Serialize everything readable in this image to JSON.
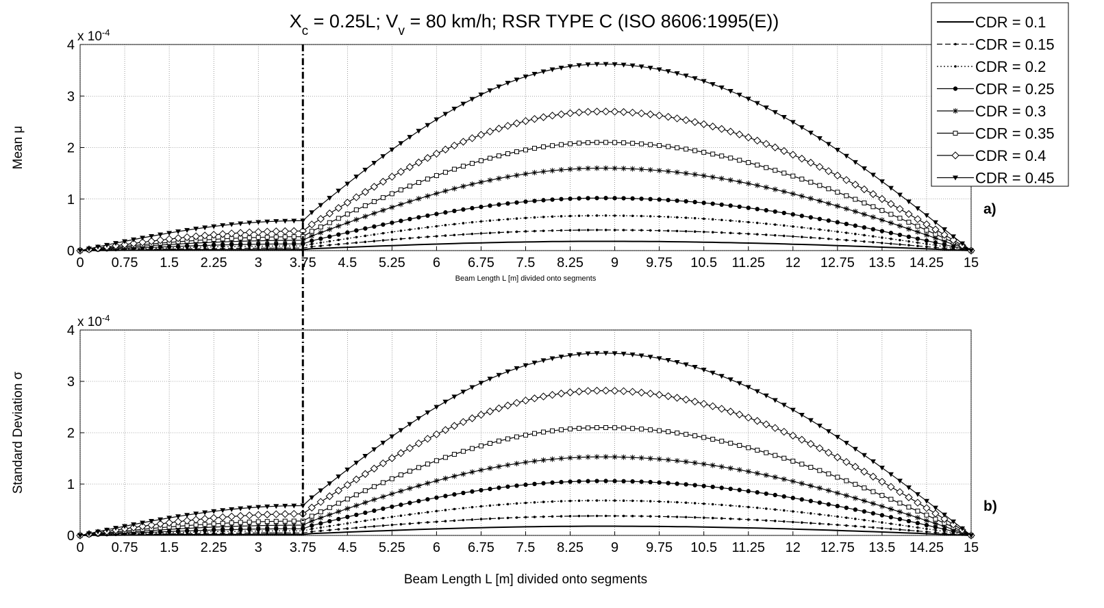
{
  "chart_data": {
    "type": "line",
    "title": {
      "parts": [
        {
          "t": "X",
          "sub": false
        },
        {
          "t": "c",
          "sub": true
        },
        {
          "t": " = 0.25L; V",
          "sub": false
        },
        {
          "t": "v",
          "sub": true
        },
        {
          "t": " = 80 km/h; RSR TYPE C (ISO 8606:1995(E))",
          "sub": false
        }
      ]
    },
    "legend_position": "top-right",
    "grid": true,
    "vertical_marker_x": 3.75,
    "x_ticks": [
      "0",
      "0.75",
      "1.5",
      "2.25",
      "3",
      "3.75",
      "4.5",
      "5.25",
      "6",
      "6.75",
      "7.5",
      "8.25",
      "9",
      "9.75",
      "10.5",
      "11.25",
      "12",
      "12.75",
      "13.5",
      "14.25",
      "15"
    ],
    "xlim": [
      0,
      15
    ],
    "panels": [
      {
        "id": "a",
        "tag": "a)",
        "ylabel": "Mean μ",
        "xlabel": "Beam Length L [m] divided onto segments",
        "y_ticks": [
          "0",
          "1",
          "2",
          "3",
          "4"
        ],
        "ylim": [
          0,
          4
        ],
        "exponent_label": {
          "base": "x 10",
          "exp": "-4"
        },
        "series": [
          {
            "name": "CDR = 0.1",
            "marker": "none",
            "dash": "solid",
            "left_x": [
              0,
              3.75
            ],
            "left_y": [
              0,
              0.02
            ],
            "right_peak_x": 8.8,
            "right_peak_y": 0.18,
            "right_start_y": 0.03
          },
          {
            "name": "CDR = 0.15",
            "marker": "smalldot",
            "dash": "dash",
            "left_x": [
              0,
              3.75
            ],
            "left_y": [
              0,
              0.05
            ],
            "right_peak_x": 8.8,
            "right_peak_y": 0.4,
            "right_start_y": 0.06
          },
          {
            "name": "CDR = 0.2",
            "marker": "smalldot",
            "dash": "dot",
            "left_x": [
              0,
              3.75
            ],
            "left_y": [
              0,
              0.09
            ],
            "right_peak_x": 8.8,
            "right_peak_y": 0.68,
            "right_start_y": 0.1
          },
          {
            "name": "CDR = 0.25",
            "marker": "dot",
            "dash": "solid",
            "left_x": [
              0,
              3.75
            ],
            "left_y": [
              0,
              0.13
            ],
            "right_peak_x": 8.8,
            "right_peak_y": 1.02,
            "right_start_y": 0.15
          },
          {
            "name": "CDR = 0.3",
            "marker": "star",
            "dash": "solid",
            "left_x": [
              0,
              3.75
            ],
            "left_y": [
              0,
              0.2
            ],
            "right_peak_x": 8.8,
            "right_peak_y": 1.6,
            "right_start_y": 0.22
          },
          {
            "name": "CDR = 0.35",
            "marker": "square",
            "dash": "solid",
            "left_x": [
              0,
              3.75
            ],
            "left_y": [
              0,
              0.27
            ],
            "right_peak_x": 8.8,
            "right_peak_y": 2.1,
            "right_start_y": 0.29
          },
          {
            "name": "CDR = 0.4",
            "marker": "diamond",
            "dash": "solid",
            "left_x": [
              0,
              3.75
            ],
            "left_y": [
              0,
              0.38
            ],
            "right_peak_x": 8.8,
            "right_peak_y": 2.7,
            "right_start_y": 0.4
          },
          {
            "name": "CDR = 0.45",
            "marker": "triangle",
            "dash": "solid",
            "left_x": [
              0,
              3.75
            ],
            "left_y": [
              0,
              0.58
            ],
            "right_peak_x": 8.8,
            "right_peak_y": 3.62,
            "right_start_y": 0.6
          }
        ]
      },
      {
        "id": "b",
        "tag": "b)",
        "ylabel": "Standard Deviation σ",
        "xlabel": "Beam Length L [m] divided onto segments",
        "y_ticks": [
          "0",
          "1",
          "2",
          "3",
          "4"
        ],
        "ylim": [
          0,
          4
        ],
        "exponent_label": {
          "base": "x 10",
          "exp": "-4"
        },
        "series": [
          {
            "name": "CDR = 0.1",
            "marker": "none",
            "dash": "solid",
            "left_x": [
              0,
              3.75
            ],
            "left_y": [
              0,
              0.02
            ],
            "right_peak_x": 8.8,
            "right_peak_y": 0.18,
            "right_start_y": 0.03
          },
          {
            "name": "CDR = 0.15",
            "marker": "smalldot",
            "dash": "dash",
            "left_x": [
              0,
              3.75
            ],
            "left_y": [
              0,
              0.05
            ],
            "right_peak_x": 8.8,
            "right_peak_y": 0.38,
            "right_start_y": 0.06
          },
          {
            "name": "CDR = 0.2",
            "marker": "smalldot",
            "dash": "dot",
            "left_x": [
              0,
              3.75
            ],
            "left_y": [
              0,
              0.09
            ],
            "right_peak_x": 8.8,
            "right_peak_y": 0.68,
            "right_start_y": 0.1
          },
          {
            "name": "CDR = 0.25",
            "marker": "dot",
            "dash": "solid",
            "left_x": [
              0,
              3.75
            ],
            "left_y": [
              0,
              0.13
            ],
            "right_peak_x": 8.8,
            "right_peak_y": 1.06,
            "right_start_y": 0.15
          },
          {
            "name": "CDR = 0.3",
            "marker": "star",
            "dash": "solid",
            "left_x": [
              0,
              3.75
            ],
            "left_y": [
              0,
              0.2
            ],
            "right_peak_x": 8.8,
            "right_peak_y": 1.53,
            "right_start_y": 0.22
          },
          {
            "name": "CDR = 0.35",
            "marker": "square",
            "dash": "solid",
            "left_x": [
              0,
              3.75
            ],
            "left_y": [
              0,
              0.28
            ],
            "right_peak_x": 8.8,
            "right_peak_y": 2.1,
            "right_start_y": 0.29
          },
          {
            "name": "CDR = 0.4",
            "marker": "diamond",
            "dash": "solid",
            "left_x": [
              0,
              3.75
            ],
            "left_y": [
              0,
              0.42
            ],
            "right_peak_x": 8.8,
            "right_peak_y": 2.82,
            "right_start_y": 0.43
          },
          {
            "name": "CDR = 0.45",
            "marker": "triangle",
            "dash": "solid",
            "left_x": [
              0,
              3.75
            ],
            "left_y": [
              0,
              0.58
            ],
            "right_peak_x": 8.8,
            "right_peak_y": 3.55,
            "right_start_y": 0.6
          }
        ]
      }
    ]
  }
}
